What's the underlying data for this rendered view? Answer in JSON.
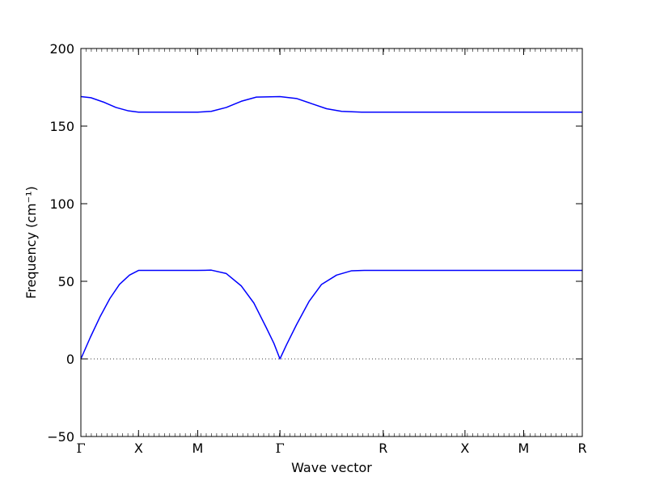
{
  "chart_data": {
    "type": "line",
    "title": "",
    "xlabel": "Wave vector",
    "ylabel": "Frequency (cm⁻¹)",
    "ylim": [
      -50,
      200
    ],
    "yticks": [
      -50,
      0,
      50,
      100,
      150,
      200
    ],
    "ytick_labels": [
      "−50",
      "0",
      "50",
      "100",
      "150",
      "200"
    ],
    "xticks": [
      {
        "x": 0.0,
        "label": "Γ"
      },
      {
        "x": 0.115,
        "label": "X"
      },
      {
        "x": 0.233,
        "label": "M"
      },
      {
        "x": 0.397,
        "label": "Γ"
      },
      {
        "x": 0.603,
        "label": "R"
      },
      {
        "x": 0.766,
        "label": "X"
      },
      {
        "x": 0.883,
        "label": "M"
      },
      {
        "x": 1.0,
        "label": "R"
      }
    ],
    "zero_line": {
      "y": 0,
      "style": "dotted"
    },
    "series": [
      {
        "color": "#0000ff",
        "points": [
          [
            0.0,
            0
          ],
          [
            0.019,
            14
          ],
          [
            0.038,
            27
          ],
          [
            0.058,
            39
          ],
          [
            0.077,
            48
          ],
          [
            0.097,
            54
          ],
          [
            0.115,
            57
          ],
          [
            0.15,
            57
          ],
          [
            0.19,
            57
          ],
          [
            0.233,
            57
          ],
          [
            0.26,
            57.2
          ],
          [
            0.29,
            55
          ],
          [
            0.32,
            47
          ],
          [
            0.345,
            36
          ],
          [
            0.37,
            20
          ],
          [
            0.385,
            10
          ],
          [
            0.397,
            0
          ],
          [
            0.41,
            9
          ],
          [
            0.43,
            22
          ],
          [
            0.455,
            37
          ],
          [
            0.48,
            48
          ],
          [
            0.51,
            54
          ],
          [
            0.54,
            56.8
          ],
          [
            0.565,
            57
          ],
          [
            0.603,
            57
          ],
          [
            0.7,
            57
          ],
          [
            0.766,
            57
          ],
          [
            0.883,
            57
          ],
          [
            1.0,
            57
          ]
        ]
      },
      {
        "color": "#0000ff",
        "points": [
          [
            0.0,
            169
          ],
          [
            0.02,
            168.3
          ],
          [
            0.045,
            165.5
          ],
          [
            0.07,
            162
          ],
          [
            0.095,
            159.8
          ],
          [
            0.115,
            159
          ],
          [
            0.17,
            159
          ],
          [
            0.233,
            159
          ],
          [
            0.26,
            159.5
          ],
          [
            0.29,
            162
          ],
          [
            0.32,
            166
          ],
          [
            0.35,
            168.7
          ],
          [
            0.397,
            169
          ],
          [
            0.43,
            167.8
          ],
          [
            0.46,
            164.5
          ],
          [
            0.49,
            161.2
          ],
          [
            0.52,
            159.5
          ],
          [
            0.56,
            159
          ],
          [
            0.603,
            159
          ],
          [
            0.766,
            159
          ],
          [
            0.883,
            159
          ],
          [
            1.0,
            159
          ]
        ]
      }
    ],
    "grid": false
  }
}
